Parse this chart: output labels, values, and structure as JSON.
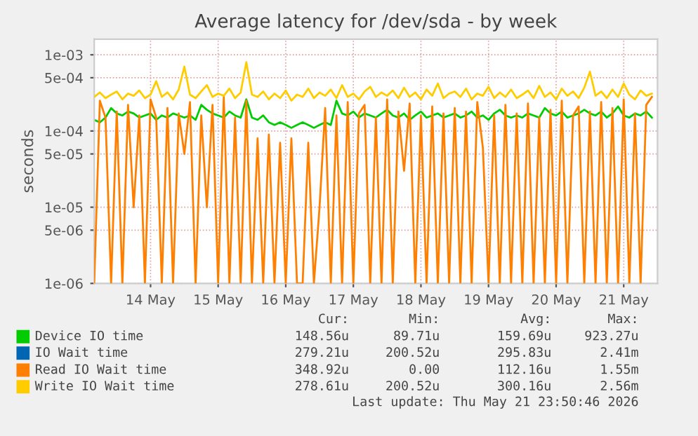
{
  "chart_data": {
    "type": "line",
    "title": "Average latency for /dev/sda - by week",
    "ylabel": "seconds",
    "log": "y",
    "grid": true,
    "legend": "bottom",
    "marker": "none",
    "line_style": "solid",
    "ylim": [
      1e-06,
      0.0016
    ],
    "yticks": [
      {
        "value": 1e-06,
        "label": "1e-06"
      },
      {
        "value": 5e-06,
        "label": "5e-06"
      },
      {
        "value": 1e-05,
        "label": "1e-05"
      },
      {
        "value": 5e-05,
        "label": "5e-05"
      },
      {
        "value": 0.0001,
        "label": "1e-04"
      },
      {
        "value": 0.0005,
        "label": "5e-04"
      },
      {
        "value": 0.001,
        "label": "1e-03"
      }
    ],
    "xlim": [
      "2026-05-13T16:00",
      "2026-05-22T00:00"
    ],
    "xticks": [
      {
        "value": "2026-05-14T12:00",
        "label": "14 May"
      },
      {
        "value": "2026-05-15T12:00",
        "label": "15 May"
      },
      {
        "value": "2026-05-16T12:00",
        "label": "16 May"
      },
      {
        "value": "2026-05-17T12:00",
        "label": "17 May"
      },
      {
        "value": "2026-05-18T12:00",
        "label": "18 May"
      },
      {
        "value": "2026-05-19T12:00",
        "label": "19 May"
      },
      {
        "value": "2026-05-20T12:00",
        "label": "20 May"
      },
      {
        "value": "2026-05-21T12:00",
        "label": "21 May"
      }
    ],
    "x": [
      "2026-05-13T16:00",
      "2026-05-13T18:00",
      "2026-05-13T20:00",
      "2026-05-13T22:00",
      "2026-05-14T00:00",
      "2026-05-14T02:00",
      "2026-05-14T04:00",
      "2026-05-14T06:00",
      "2026-05-14T08:00",
      "2026-05-14T10:00",
      "2026-05-14T12:00",
      "2026-05-14T14:00",
      "2026-05-14T16:00",
      "2026-05-14T18:00",
      "2026-05-14T20:00",
      "2026-05-14T22:00",
      "2026-05-15T00:00",
      "2026-05-15T02:00",
      "2026-05-15T04:00",
      "2026-05-15T06:00",
      "2026-05-15T08:00",
      "2026-05-15T10:00",
      "2026-05-15T12:00",
      "2026-05-15T14:00",
      "2026-05-15T16:00",
      "2026-05-15T18:00",
      "2026-05-15T20:00",
      "2026-05-15T22:00",
      "2026-05-16T00:00",
      "2026-05-16T02:00",
      "2026-05-16T04:00",
      "2026-05-16T06:00",
      "2026-05-16T08:00",
      "2026-05-16T10:00",
      "2026-05-16T12:00",
      "2026-05-16T14:00",
      "2026-05-16T16:00",
      "2026-05-16T18:00",
      "2026-05-16T20:00",
      "2026-05-16T22:00",
      "2026-05-17T00:00",
      "2026-05-17T02:00",
      "2026-05-17T04:00",
      "2026-05-17T06:00",
      "2026-05-17T08:00",
      "2026-05-17T10:00",
      "2026-05-17T12:00",
      "2026-05-17T14:00",
      "2026-05-17T16:00",
      "2026-05-17T18:00",
      "2026-05-17T20:00",
      "2026-05-17T22:00",
      "2026-05-18T00:00",
      "2026-05-18T02:00",
      "2026-05-18T04:00",
      "2026-05-18T06:00",
      "2026-05-18T08:00",
      "2026-05-18T10:00",
      "2026-05-18T12:00",
      "2026-05-18T14:00",
      "2026-05-18T16:00",
      "2026-05-18T18:00",
      "2026-05-18T20:00",
      "2026-05-18T22:00",
      "2026-05-19T00:00",
      "2026-05-19T02:00",
      "2026-05-19T04:00",
      "2026-05-19T06:00",
      "2026-05-19T08:00",
      "2026-05-19T10:00",
      "2026-05-19T12:00",
      "2026-05-19T14:00",
      "2026-05-19T16:00",
      "2026-05-19T18:00",
      "2026-05-19T20:00",
      "2026-05-19T22:00",
      "2026-05-20T00:00",
      "2026-05-20T02:00",
      "2026-05-20T04:00",
      "2026-05-20T06:00",
      "2026-05-20T08:00",
      "2026-05-20T10:00",
      "2026-05-20T12:00",
      "2026-05-20T14:00",
      "2026-05-20T16:00",
      "2026-05-20T18:00",
      "2026-05-20T20:00",
      "2026-05-20T22:00",
      "2026-05-21T00:00",
      "2026-05-21T02:00",
      "2026-05-21T04:00",
      "2026-05-21T06:00",
      "2026-05-21T08:00",
      "2026-05-21T10:00",
      "2026-05-21T12:00",
      "2026-05-21T14:00",
      "2026-05-21T16:00",
      "2026-05-21T18:00",
      "2026-05-21T20:00",
      "2026-05-21T22:00"
    ],
    "series": [
      {
        "name": "Device IO time",
        "color": "#00cc00",
        "values": [
          0.00014,
          0.00013,
          0.00015,
          0.0002,
          0.00017,
          0.00016,
          0.00018,
          0.00017,
          0.00015,
          0.00016,
          0.00017,
          0.00014,
          0.00016,
          0.00015,
          0.00017,
          0.00016,
          0.00015,
          0.00016,
          0.00014,
          0.00022,
          0.00019,
          0.00017,
          0.00016,
          0.00015,
          0.00018,
          0.00016,
          0.00015,
          0.00026,
          0.00015,
          0.00014,
          0.00016,
          0.00013,
          0.00012,
          0.00013,
          0.00012,
          0.00011,
          0.00012,
          0.00013,
          0.00012,
          0.00011,
          0.00012,
          0.00013,
          0.00012,
          0.00025,
          0.00017,
          0.00016,
          0.00018,
          0.00015,
          0.00017,
          0.00016,
          0.00015,
          0.00017,
          0.00019,
          0.00016,
          0.00015,
          0.00017,
          0.00014,
          0.00016,
          0.00018,
          0.00015,
          0.00016,
          0.00017,
          0.00015,
          0.00016,
          0.00017,
          0.00015,
          0.00016,
          0.00018,
          0.00015,
          0.00016,
          0.00014,
          0.00017,
          0.00019,
          0.00016,
          0.00015,
          0.00016,
          0.00015,
          0.00017,
          0.00016,
          0.00015,
          0.0002,
          0.00017,
          0.00016,
          0.00018,
          0.00015,
          0.00016,
          0.00017,
          0.00019,
          0.00017,
          0.00016,
          0.00018,
          0.00015,
          0.00017,
          0.00021,
          0.00016,
          0.00015,
          0.00017,
          0.00016,
          0.00018,
          0.00015
        ]
      },
      {
        "name": "IO Wait time",
        "color": "#0066b3",
        "values": [
          null,
          null,
          null,
          null,
          null,
          null,
          null,
          null,
          null,
          null,
          null,
          null,
          null,
          null,
          null,
          null,
          null,
          null,
          null,
          null,
          null,
          null,
          null,
          null,
          null,
          null,
          null,
          null,
          null,
          null,
          null,
          null,
          null,
          null,
          null,
          null,
          null,
          null,
          null,
          null,
          null,
          null,
          null,
          null,
          null,
          null,
          null,
          null,
          null,
          null,
          null,
          null,
          null,
          null,
          null,
          null,
          null,
          null,
          null,
          null,
          null,
          null,
          null,
          null,
          null,
          null,
          null,
          null,
          null,
          null,
          null,
          null,
          null,
          null,
          null,
          null,
          null,
          null,
          null,
          null,
          null,
          null,
          null,
          null,
          null,
          null,
          null,
          null,
          null,
          null,
          null,
          null,
          null,
          null,
          null,
          null,
          null,
          null,
          null,
          null
        ]
      },
      {
        "name": "Read IO Wait time",
        "color": "#ff8000",
        "values": [
          1e-06,
          0.00025,
          0.00015,
          1e-06,
          0.00018,
          1e-06,
          0.00022,
          1e-05,
          0.00016,
          1e-06,
          0.00026,
          0.00015,
          1e-06,
          0.0002,
          1e-06,
          0.00017,
          5e-05,
          0.00024,
          1e-06,
          0.00016,
          1e-05,
          0.00022,
          1e-06,
          0.00028,
          1e-06,
          0.00015,
          1e-06,
          0.00025,
          1e-06,
          8e-05,
          1e-06,
          9e-05,
          1e-06,
          7e-05,
          1e-06,
          8e-05,
          1e-06,
          1e-06,
          7e-05,
          1e-06,
          1e-05,
          0.0002,
          1e-06,
          0.00016,
          1e-06,
          0.00024,
          1e-06,
          0.00017,
          0.00022,
          1e-06,
          0.00015,
          1e-06,
          0.00026,
          1e-06,
          0.00018,
          3e-05,
          0.00023,
          1e-06,
          0.00016,
          1e-06,
          0.00021,
          1e-06,
          0.00017,
          1e-06,
          0.0002,
          1e-06,
          0.00018,
          1e-06,
          0.00024,
          6e-05,
          1e-06,
          0.00016,
          1e-06,
          0.00022,
          1e-06,
          0.00017,
          1e-06,
          0.00023,
          1e-06,
          0.00015,
          1e-06,
          0.00019,
          1e-06,
          0.00025,
          1e-06,
          0.00016,
          0.00021,
          1e-06,
          0.00018,
          1e-06,
          0.00024,
          1e-06,
          0.0002,
          1e-06,
          0.00026,
          1e-06,
          0.00017,
          1e-06,
          0.00022,
          0.00028
        ]
      },
      {
        "name": "Write IO Wait time",
        "color": "#ffcc00",
        "values": [
          0.00028,
          0.00032,
          0.00027,
          0.0003,
          0.00033,
          0.00026,
          0.00031,
          0.00029,
          0.00034,
          0.00027,
          0.0003,
          0.00045,
          0.00028,
          0.00032,
          0.00026,
          0.00035,
          0.0007,
          0.0003,
          0.00027,
          0.00033,
          0.0004,
          0.00028,
          0.00031,
          0.00029,
          0.00036,
          0.00027,
          0.00032,
          0.0008,
          0.0003,
          0.00028,
          0.00033,
          0.00026,
          0.00031,
          0.00027,
          0.00034,
          0.00025,
          0.0003,
          0.00028,
          0.00036,
          0.00027,
          0.00032,
          0.00029,
          0.00035,
          0.00027,
          0.0004,
          0.00028,
          0.00031,
          0.00026,
          0.00033,
          0.00038,
          0.00028,
          0.00032,
          0.00029,
          0.00034,
          0.00027,
          0.00037,
          0.00028,
          0.00032,
          0.00026,
          0.00035,
          0.00029,
          0.00042,
          0.00027,
          0.00031,
          0.00033,
          0.00028,
          0.00036,
          0.00026,
          0.00031,
          0.00029,
          0.00038,
          0.00027,
          0.00032,
          0.00028,
          0.00035,
          0.00027,
          0.0003,
          0.00034,
          0.00027,
          0.00039,
          0.00028,
          0.00032,
          0.00026,
          0.00036,
          0.00029,
          0.00033,
          0.00027,
          0.00037,
          0.0006,
          0.00029,
          0.00033,
          0.00027,
          0.00035,
          0.00028,
          0.00042,
          0.0003,
          0.00026,
          0.00034,
          0.00029,
          0.00031
        ]
      }
    ],
    "annotations": [
      "Cur:",
      "Min:",
      "Avg:",
      "Max:",
      "148.56u",
      "89.71u",
      "159.69u",
      "923.27u",
      "279.21u",
      "200.52u",
      "295.83u",
      "2.41m",
      "348.92u",
      "0.00",
      "112.16u",
      "1.55m",
      "278.61u",
      "200.52u",
      "300.16u",
      "2.56m",
      "Last update: Thu May 21 23:50:46 2026"
    ]
  }
}
